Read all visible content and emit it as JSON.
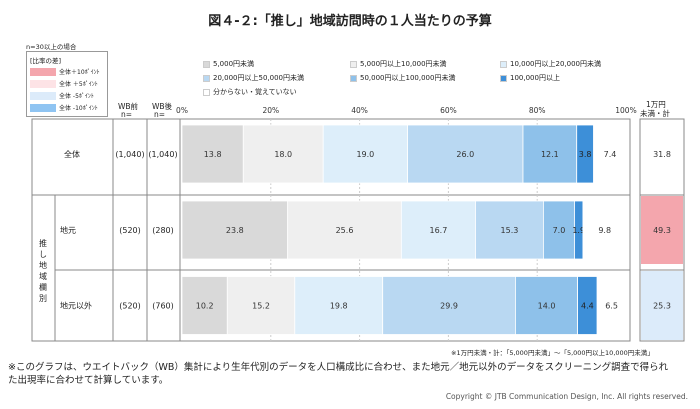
{
  "title": "図４-２:「推し」地域訪問時の１人当たりの予算",
  "sample_note": "n=30以上の場合",
  "ratio_legend": {
    "header": "[比率の差]",
    "items": [
      {
        "label": "全体＋10ﾎﾟｲﾝﾄ",
        "color": "#f4a6ad"
      },
      {
        "label": "全体 ＋5ﾎﾟｲﾝﾄ",
        "color": "#fde3e6"
      },
      {
        "label": "全体 -5ﾎﾟｲﾝﾄ",
        "color": "#dcebfa"
      },
      {
        "label": "全体 -10ﾎﾟｲﾝﾄ",
        "color": "#8fc4f2"
      }
    ]
  },
  "col_headers": {
    "wb_before": "WB前",
    "wb_before_n": "n=",
    "wb_after": "WB後",
    "wb_after_n": "n=",
    "right_line1": "1万円",
    "right_line2": "未満・計"
  },
  "group_label": "推し地域欄別",
  "footnote_small": "※1万円未満・計：「5,000円未満」〜「5,000円以上10,000円未満」",
  "footnote_line1": "※このグラフは、ウエイトバック（WB）集計により生年代別のデータを人口構成比に合わせ、また地元／地元以外のデータをスクリーニング調査で得られ",
  "footnote_line2": "た出現率に合わせて計算しています。",
  "copyright": "Copyright © JTB Communication Design, Inc. All rights reserved.",
  "chart_data": {
    "type": "bar",
    "orientation": "horizontal-stacked-100",
    "x_ticks": [
      "0%",
      "20%",
      "40%",
      "60%",
      "80%",
      "100%"
    ],
    "xlim": [
      0,
      100
    ],
    "series": [
      {
        "name": "5,000円未満",
        "color": "#d9d9d9"
      },
      {
        "name": "5,000円以上10,000円未満",
        "color": "#efefef"
      },
      {
        "name": "10,000円以上20,000円未満",
        "color": "#ddeefa"
      },
      {
        "name": "20,000円以上50,000円未満",
        "color": "#b9d8f2"
      },
      {
        "name": "50,000円以上100,000円未満",
        "color": "#8ec1ea"
      },
      {
        "name": "100,000円以上",
        "color": "#3d8fd8"
      },
      {
        "name": "分からない・覚えていない",
        "color": "#ffffff"
      }
    ],
    "rows": [
      {
        "label": "全体",
        "wb_before": "(1,040)",
        "wb_after": "(1,040)",
        "values": [
          13.8,
          18.0,
          19.0,
          26.0,
          12.1,
          3.8,
          7.4
        ],
        "total": 31.8,
        "total_color": "#ffffff"
      },
      {
        "label": "地元",
        "wb_before": "(520)",
        "wb_after": "(280)",
        "values": [
          23.8,
          25.6,
          16.7,
          15.3,
          7.0,
          1.9,
          9.8
        ],
        "total": 49.3,
        "total_color": "#f4a6ad"
      },
      {
        "label": "地元以外",
        "wb_before": "(520)",
        "wb_after": "(760)",
        "values": [
          10.2,
          15.2,
          19.8,
          29.9,
          14.0,
          4.4,
          6.5
        ],
        "total": 25.3,
        "total_color": "#dcebfa"
      }
    ]
  }
}
